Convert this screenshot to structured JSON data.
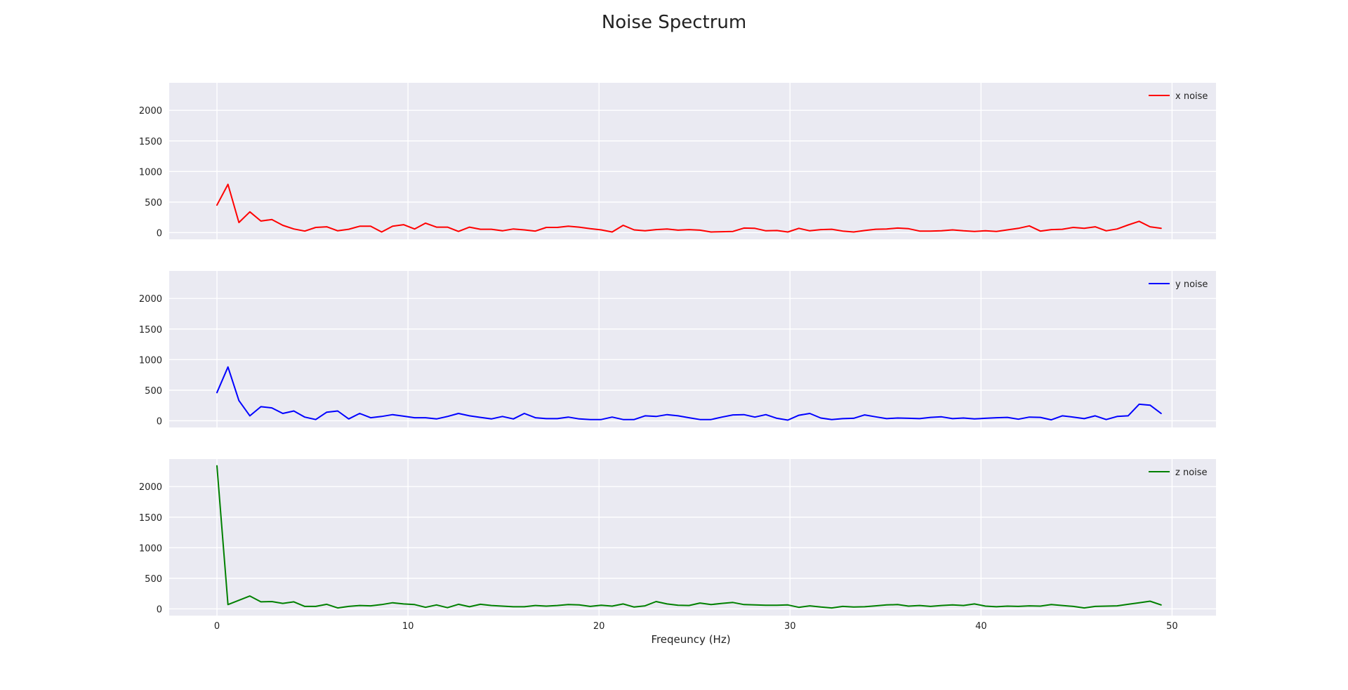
{
  "chart_data": {
    "type": "line",
    "title": "Noise Spectrum",
    "xlabel": "Freqeuncy (Hz)",
    "ylabel": "",
    "xlim": [
      -2.5,
      52.3
    ],
    "ylim": [
      -110,
      2450
    ],
    "xticks": [
      0,
      10,
      20,
      30,
      40,
      50
    ],
    "yticks": [
      0,
      500,
      1000,
      1500,
      2000
    ],
    "grid": true,
    "legend_position": "top-right",
    "x_step": 0.5747,
    "series": [
      {
        "name": "x noise",
        "color": "#ff0000",
        "values": [
          450,
          790,
          165,
          340,
          190,
          215,
          120,
          60,
          25,
          85,
          95,
          30,
          55,
          105,
          105,
          10,
          105,
          130,
          60,
          155,
          90,
          90,
          20,
          90,
          55,
          55,
          30,
          60,
          45,
          25,
          85,
          85,
          105,
          90,
          65,
          45,
          10,
          120,
          45,
          30,
          50,
          60,
          40,
          50,
          40,
          10,
          15,
          20,
          75,
          70,
          30,
          35,
          10,
          70,
          30,
          50,
          55,
          25,
          10,
          35,
          55,
          60,
          75,
          65,
          25,
          25,
          30,
          45,
          30,
          20,
          30,
          20,
          45,
          70,
          110,
          25,
          50,
          55,
          85,
          70,
          95,
          30,
          60,
          125,
          185,
          95,
          70
        ]
      },
      {
        "name": "y noise",
        "color": "#0000ff",
        "values": [
          460,
          880,
          330,
          80,
          230,
          210,
          120,
          160,
          60,
          20,
          140,
          160,
          30,
          120,
          50,
          70,
          100,
          75,
          50,
          50,
          30,
          70,
          120,
          80,
          55,
          30,
          70,
          30,
          120,
          50,
          35,
          35,
          60,
          30,
          20,
          20,
          60,
          20,
          20,
          80,
          70,
          100,
          80,
          50,
          20,
          20,
          60,
          95,
          100,
          60,
          100,
          40,
          10,
          90,
          120,
          45,
          20,
          35,
          40,
          95,
          65,
          35,
          45,
          40,
          35,
          55,
          65,
          35,
          45,
          30,
          40,
          50,
          55,
          25,
          60,
          55,
          15,
          80,
          60,
          35,
          80,
          20,
          70,
          80,
          270,
          255,
          120
        ]
      },
      {
        "name": "z noise",
        "color": "#008000",
        "values": [
          2340,
          70,
          140,
          210,
          115,
          120,
          90,
          115,
          40,
          40,
          75,
          15,
          40,
          55,
          50,
          70,
          100,
          80,
          70,
          25,
          65,
          20,
          75,
          35,
          75,
          55,
          45,
          35,
          35,
          55,
          45,
          55,
          70,
          65,
          40,
          60,
          45,
          80,
          30,
          50,
          120,
          80,
          60,
          55,
          95,
          70,
          90,
          105,
          70,
          65,
          60,
          60,
          65,
          25,
          50,
          30,
          15,
          40,
          30,
          35,
          50,
          65,
          70,
          45,
          55,
          40,
          55,
          65,
          55,
          80,
          45,
          35,
          45,
          40,
          50,
          45,
          70,
          55,
          40,
          15,
          40,
          45,
          50,
          75,
          100,
          125,
          65
        ]
      }
    ]
  }
}
